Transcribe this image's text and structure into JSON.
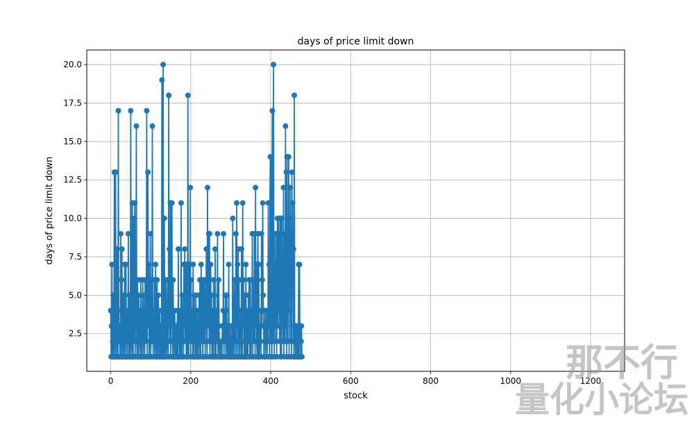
{
  "chart_data": {
    "type": "line",
    "title": "days of price limit down",
    "xlabel": "stock",
    "ylabel": "days of price limit down",
    "xlim": [
      -60,
      1285
    ],
    "ylim": [
      0.05,
      20.95
    ],
    "xticks": [
      0,
      200,
      400,
      600,
      800,
      1000,
      1200
    ],
    "yticks": [
      2.5,
      5.0,
      7.5,
      10.0,
      12.5,
      15.0,
      17.5,
      20.0
    ],
    "ytick_labels": [
      "2.5",
      "5.0",
      "7.5",
      "10.0",
      "12.5",
      "15.0",
      "17.5",
      "20.0"
    ],
    "grid": true,
    "marker": "circle",
    "series": [
      {
        "color": "#1f77b4",
        "x_start": 0,
        "x_step": 1,
        "y": [
          4,
          1,
          3,
          7,
          1,
          2,
          5,
          1,
          3,
          13,
          2,
          1,
          13,
          5,
          2,
          1,
          8,
          3,
          1,
          17,
          4,
          2,
          3,
          1,
          2,
          9,
          1,
          6,
          8,
          2,
          1,
          5,
          3,
          1,
          4,
          7,
          2,
          1,
          7,
          2,
          3,
          1,
          4,
          2,
          9,
          1,
          5,
          3,
          1,
          2,
          17,
          4,
          1,
          2,
          11,
          3,
          1,
          10,
          5,
          2,
          11,
          1,
          4,
          3,
          16,
          2,
          1,
          6,
          3,
          1,
          5,
          2,
          4,
          1,
          2,
          6,
          3,
          1,
          2,
          4,
          6,
          1,
          5,
          3,
          2,
          1,
          6,
          4,
          2,
          5,
          17,
          1,
          6,
          13,
          3,
          7,
          1,
          2,
          5,
          9,
          1,
          3,
          6,
          2,
          16,
          4,
          1,
          3,
          2,
          6,
          1,
          2,
          7,
          3,
          1,
          5,
          6,
          1,
          2,
          5,
          3,
          1,
          2,
          4,
          1,
          3,
          2,
          1,
          19,
          3,
          1,
          20,
          2,
          1,
          10,
          3,
          1,
          2,
          6,
          3,
          1,
          2,
          6,
          3,
          1,
          18,
          3,
          8,
          2,
          11,
          1,
          11,
          3,
          11,
          2,
          1,
          6,
          3,
          2,
          1,
          4,
          2,
          1,
          3,
          2,
          1,
          3,
          4,
          1,
          8,
          2,
          3,
          1,
          4,
          2,
          1,
          11,
          3,
          1,
          5,
          2,
          4,
          1,
          7,
          3,
          8,
          2,
          7,
          3,
          1,
          7,
          2,
          1,
          18,
          3,
          1,
          7,
          2,
          5,
          12,
          1,
          6,
          3,
          2,
          4,
          1,
          7,
          3,
          1,
          5,
          2,
          4,
          1,
          5,
          3,
          1,
          2,
          4,
          1,
          3,
          2,
          5,
          1,
          6,
          3,
          1,
          7,
          4,
          2,
          6,
          1,
          3,
          6,
          2,
          4,
          6,
          1,
          5,
          3,
          8,
          2,
          1,
          12,
          3,
          7,
          9,
          2,
          9,
          1,
          3,
          7,
          2,
          5,
          1,
          4,
          3,
          1,
          6,
          2,
          5,
          1,
          8,
          3,
          1,
          4,
          2,
          3,
          9,
          1,
          2,
          6,
          3,
          1,
          2,
          1,
          2,
          1,
          2,
          1,
          3,
          2,
          4,
          9,
          1,
          3,
          4,
          2,
          5,
          1,
          4,
          5,
          2,
          1,
          3,
          1,
          7,
          2,
          1,
          3,
          1,
          2,
          1,
          3,
          1,
          2,
          10,
          1,
          3,
          2,
          6,
          1,
          4,
          2,
          9,
          1,
          11,
          3,
          7,
          1,
          8,
          2,
          6,
          1,
          3,
          2,
          4,
          1,
          8,
          2,
          1,
          11,
          3,
          6,
          2,
          1,
          5,
          3,
          1,
          7,
          2,
          1,
          4,
          3,
          1,
          5,
          2,
          6,
          3,
          1,
          6,
          2,
          1,
          4,
          3,
          9,
          1,
          4,
          6,
          2,
          9,
          5,
          1,
          12,
          3,
          7,
          2,
          1,
          6,
          9,
          1,
          7,
          3,
          1,
          3,
          2,
          4,
          1,
          9,
          3,
          6,
          11,
          5,
          4,
          1,
          3,
          2,
          4,
          1,
          2,
          3,
          4,
          1,
          4,
          2,
          11,
          3,
          7,
          1,
          11,
          14,
          2,
          14,
          4,
          1,
          17,
          7,
          2,
          20,
          6,
          1,
          9,
          3,
          7,
          2,
          9,
          1,
          7,
          10,
          3,
          10,
          4,
          9,
          2,
          10,
          1,
          10,
          8,
          1,
          10,
          3,
          6,
          2,
          12,
          1,
          8,
          9,
          2,
          16,
          3,
          13,
          1,
          14,
          2,
          7,
          4,
          14,
          1,
          10,
          8,
          12,
          2,
          9,
          1,
          13,
          5,
          11,
          2,
          8,
          1,
          18,
          3,
          2,
          1,
          3,
          2,
          1,
          3,
          2,
          1,
          2,
          7,
          1,
          7,
          2,
          3,
          1,
          2,
          3,
          1
        ]
      }
    ]
  },
  "watermark": {
    "line1": "那不行",
    "line2": "量化小论坛"
  }
}
